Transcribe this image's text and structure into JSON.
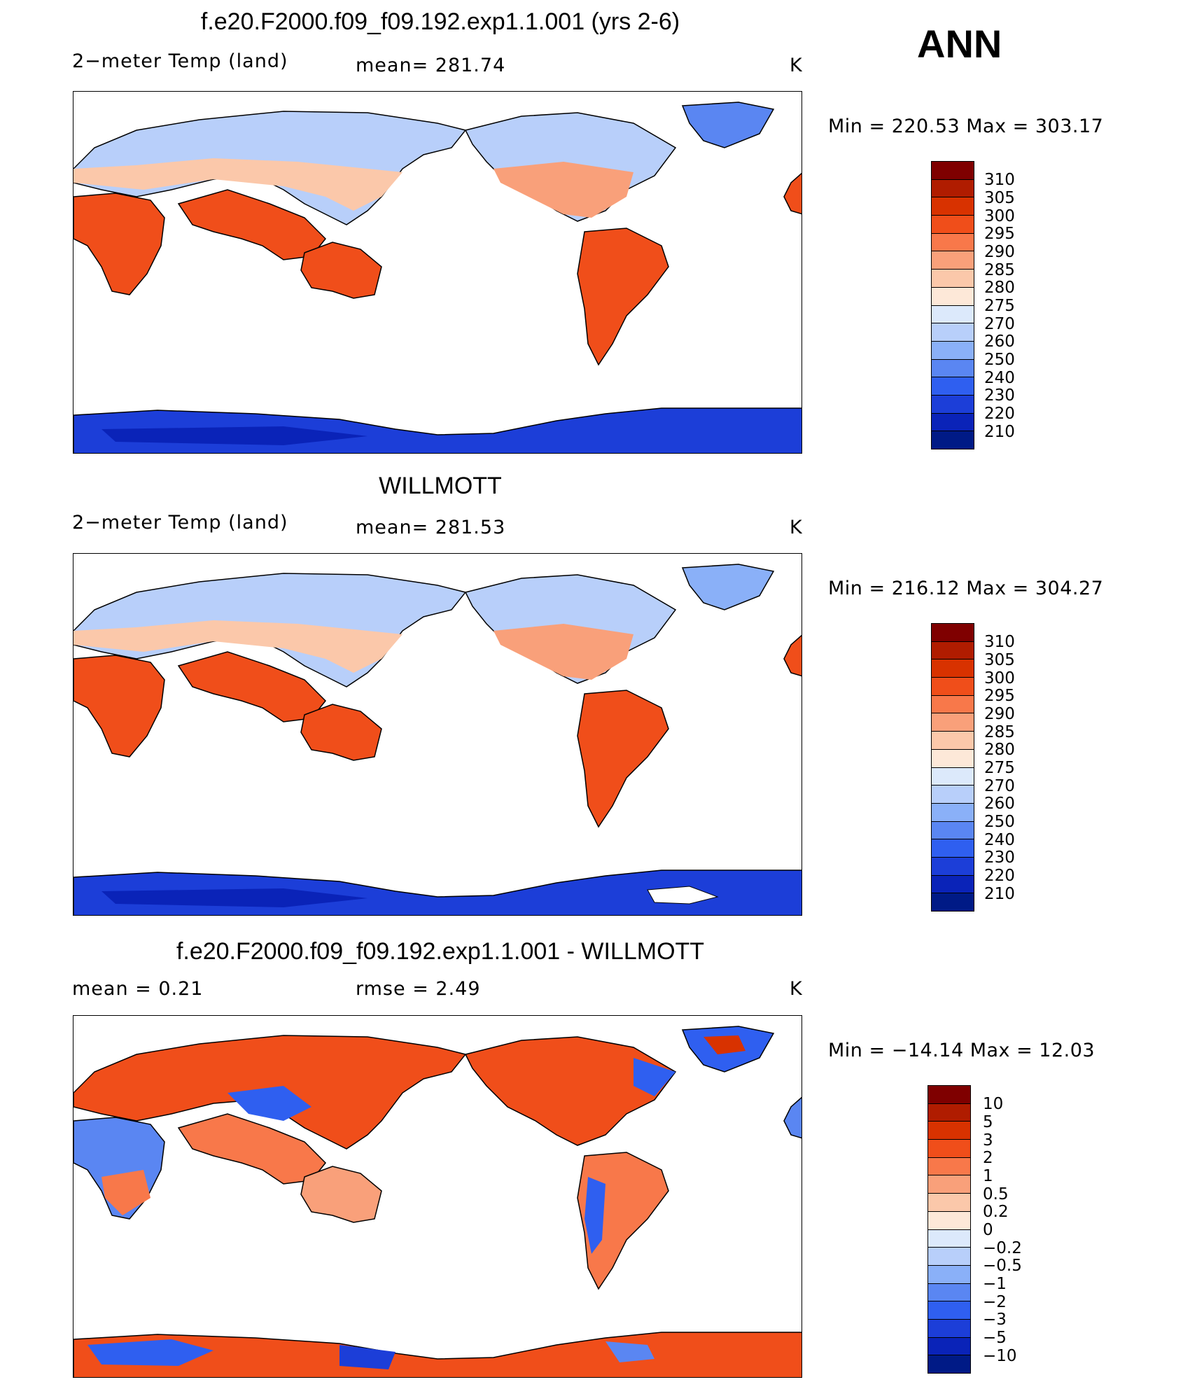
{
  "season": "ANN",
  "panels": [
    {
      "title": "f.e20.F2000.f09_f09.192.exp1.1.001 (yrs 2-6)",
      "left_label": "2−meter Temp (land)",
      "stat_label": "mean= 281.74",
      "unit": "K",
      "minmax": "Min = 220.53 Max = 303.17",
      "colorbar": [
        "310",
        "305",
        "300",
        "295",
        "290",
        "285",
        "280",
        "275",
        "270",
        "260",
        "250",
        "240",
        "230",
        "220",
        "210"
      ]
    },
    {
      "title": "WILLMOTT",
      "left_label": "2−meter Temp (land)",
      "stat_label": "mean= 281.53",
      "unit": "K",
      "minmax": "Min = 216.12 Max = 304.27",
      "colorbar": [
        "310",
        "305",
        "300",
        "295",
        "290",
        "285",
        "280",
        "275",
        "270",
        "260",
        "250",
        "240",
        "230",
        "220",
        "210"
      ]
    },
    {
      "title": "f.e20.F2000.f09_f09.192.exp1.1.001 - WILLMOTT",
      "left_label": "mean =    0.21",
      "stat_label": "rmse =    2.49",
      "unit": "K",
      "minmax": "Min = −14.14 Max =   12.03",
      "colorbar": [
        "10",
        "5",
        "3",
        "2",
        "1",
        "0.5",
        "0.2",
        "0",
        "−0.2",
        "−0.5",
        "−1",
        "−2",
        "−3",
        "−5",
        "−10"
      ]
    }
  ],
  "colors": {
    "abs_scale": [
      "#7f0000",
      "#b01c00",
      "#d83200",
      "#f04e1a",
      "#f8784a",
      "#f9a07a",
      "#fbc8aa",
      "#fde8d8",
      "#dce9fb",
      "#b8cffa",
      "#8ab0f8",
      "#5a86f2",
      "#2f5ff0",
      "#1c3ed8",
      "#0a23b8",
      "#001a86"
    ],
    "diff_scale": [
      "#7f0000",
      "#b01c00",
      "#d83200",
      "#f04e1a",
      "#f8784a",
      "#f9a07a",
      "#fbc8aa",
      "#fde8d8",
      "#dce9fb",
      "#b8cffa",
      "#8ab0f8",
      "#5a86f2",
      "#2f5ff0",
      "#1c3ed8",
      "#0a23b8",
      "#001a86"
    ]
  }
}
